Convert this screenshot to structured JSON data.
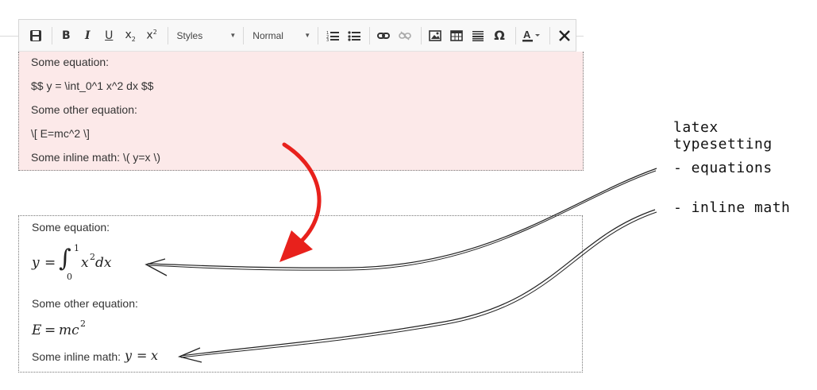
{
  "toolbar": {
    "styles_label": "Styles",
    "format_label": "Normal"
  },
  "raw_editor": {
    "lines": [
      "Some equation:",
      "$$ y = \\int_0^1 x^2 dx $$",
      "Some other equation:",
      "\\[ E=mc^2 \\]",
      "Some inline math: \\( y=x \\)"
    ]
  },
  "rendered_editor": {
    "label_1": "Some equation:",
    "label_2": "Some other equation:",
    "label_3": "Some inline math:"
  },
  "annotations": {
    "title": "latex typesetting",
    "item_1": "- equations",
    "item_2": "- inline math"
  },
  "colors": {
    "raw_bg": "#fce9e9",
    "arrow_red": "#e8211c"
  }
}
